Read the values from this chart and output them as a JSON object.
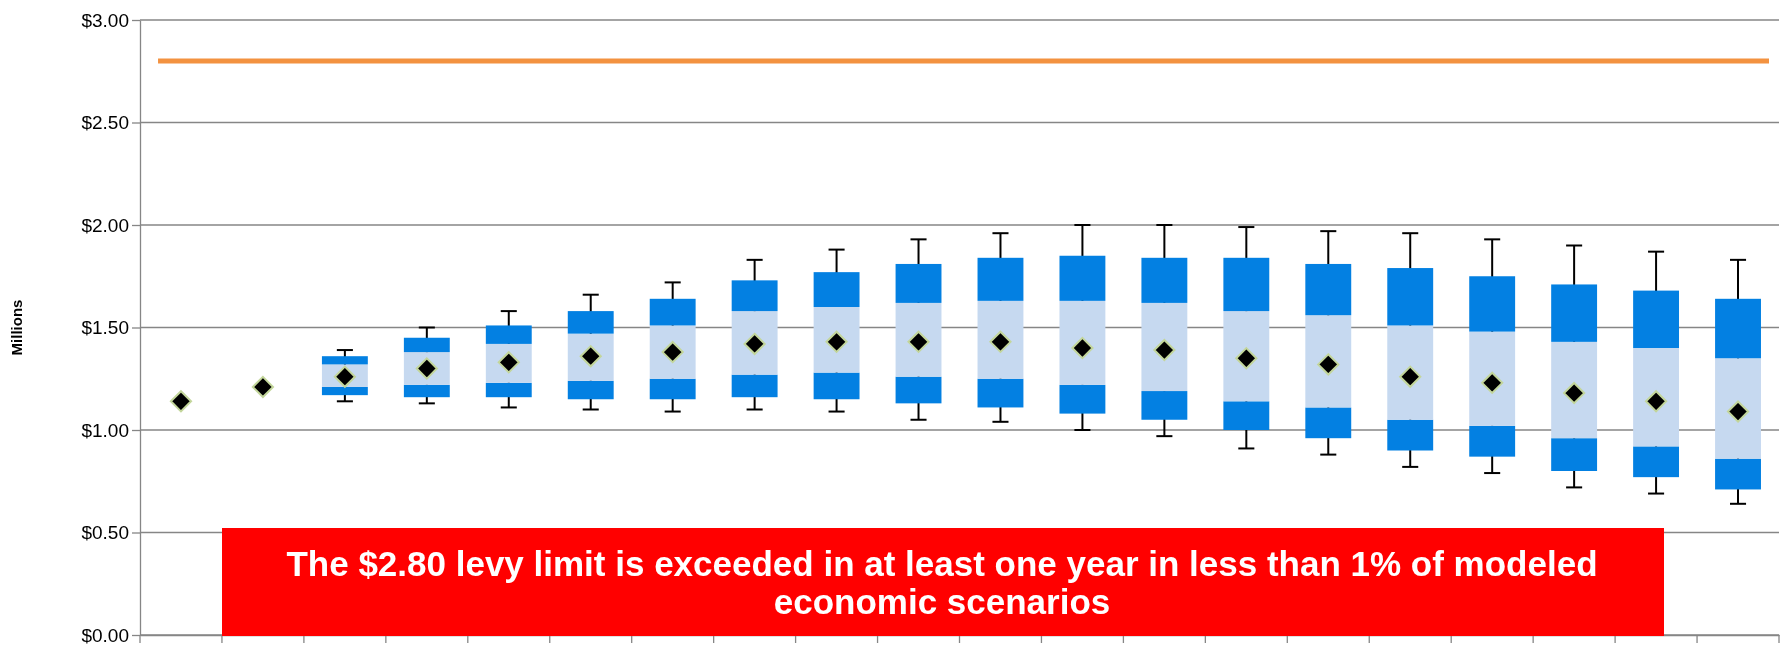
{
  "chart_data": {
    "type": "bar",
    "ylabel": "Millions",
    "grid": "y",
    "categories": [
      null,
      null,
      null,
      null,
      null,
      null,
      null,
      null,
      null,
      null,
      null,
      null,
      null,
      null,
      null,
      null,
      null,
      null,
      null,
      null
    ],
    "series": [
      {
        "color": "#0380e2",
        "base": [
          null,
          null,
          1.17,
          1.16,
          1.16,
          1.15,
          1.15,
          1.16,
          1.15,
          1.13,
          1.11,
          1.08,
          1.05,
          1.0,
          0.96,
          0.9,
          0.87,
          0.8,
          0.77,
          0.71
        ],
        "values": [
          null,
          null,
          0.04,
          0.06,
          0.07,
          0.09,
          0.1,
          0.11,
          0.13,
          0.13,
          0.14,
          0.14,
          0.14,
          0.14,
          0.15,
          0.15,
          0.15,
          0.16,
          0.15,
          0.15
        ]
      },
      {
        "color": "#c6d9f0",
        "base": [
          null,
          null,
          1.21,
          1.22,
          1.23,
          1.24,
          1.25,
          1.27,
          1.28,
          1.26,
          1.25,
          1.22,
          1.19,
          1.14,
          1.11,
          1.05,
          1.02,
          0.96,
          0.92,
          0.86
        ],
        "values": [
          null,
          null,
          0.11,
          0.16,
          0.19,
          0.23,
          0.26,
          0.31,
          0.32,
          0.36,
          0.38,
          0.41,
          0.43,
          0.44,
          0.45,
          0.46,
          0.46,
          0.47,
          0.48,
          0.49
        ]
      },
      {
        "color": "#0380e2",
        "base": [
          null,
          null,
          1.32,
          1.38,
          1.42,
          1.47,
          1.51,
          1.58,
          1.6,
          1.62,
          1.63,
          1.63,
          1.62,
          1.58,
          1.56,
          1.51,
          1.48,
          1.43,
          1.4,
          1.35
        ],
        "values": [
          null,
          null,
          0.04,
          0.07,
          0.09,
          0.11,
          0.13,
          0.15,
          0.17,
          0.19,
          0.21,
          0.22,
          0.22,
          0.26,
          0.25,
          0.28,
          0.27,
          0.28,
          0.28,
          0.29
        ],
        "errors": [
          null,
          null,
          [
            1.14,
            1.39
          ],
          [
            1.13,
            1.5
          ],
          [
            1.11,
            1.58
          ],
          [
            1.1,
            1.66
          ],
          [
            1.09,
            1.72
          ],
          [
            1.1,
            1.83
          ],
          [
            1.09,
            1.88
          ],
          [
            1.05,
            1.93
          ],
          [
            1.04,
            1.96
          ],
          [
            1.0,
            2.0
          ],
          [
            0.97,
            2.0
          ],
          [
            0.91,
            1.99
          ],
          [
            0.88,
            1.97
          ],
          [
            0.82,
            1.96
          ],
          [
            0.79,
            1.93
          ],
          [
            0.72,
            1.9
          ],
          [
            0.69,
            1.87
          ],
          [
            0.64,
            1.83
          ]
        ]
      },
      {
        "type": "scatter",
        "marker": "diamond",
        "color": "#000000",
        "values": [
          1.14,
          1.21,
          1.26,
          1.3,
          1.33,
          1.36,
          1.38,
          1.42,
          1.43,
          1.43,
          1.43,
          1.4,
          1.39,
          1.35,
          1.32,
          1.26,
          1.23,
          1.18,
          1.14,
          1.09
        ]
      }
    ],
    "ylim": [
      0,
      3
    ],
    "yticks": [
      {
        "value": 0,
        "label": "$0.00"
      },
      {
        "value": 0.5,
        "label": "$0.50"
      },
      {
        "value": 1,
        "label": "$1.00"
      },
      {
        "value": 1.5,
        "label": "$1.50"
      },
      {
        "value": 2,
        "label": "$2.00"
      },
      {
        "value": 2.5,
        "label": "$2.50"
      },
      {
        "value": 3,
        "label": "$3.00"
      }
    ],
    "ref_lines": [
      {
        "axis": "y",
        "value": 2.8,
        "color": "#f39240"
      }
    ],
    "annotations": [
      "The $2.80 levy limit is exceeded in at least one year in less than 1% of modeled economic scenarios"
    ]
  }
}
